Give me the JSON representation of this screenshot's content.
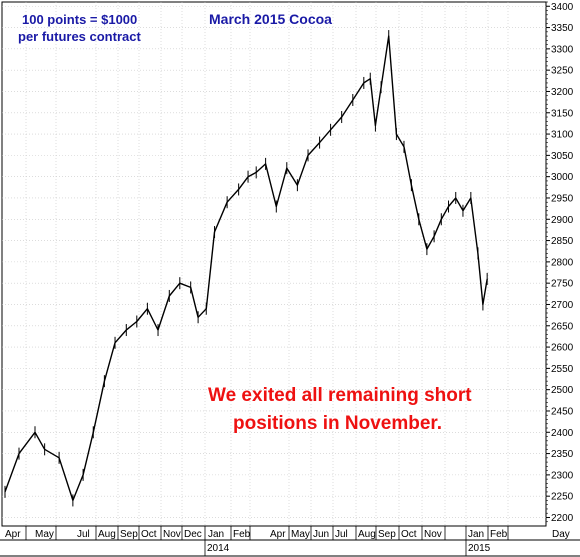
{
  "chart_data": {
    "type": "line",
    "title": "March 2015 Cocoa",
    "contract_note": [
      "100 points = $1000",
      "per futures contract"
    ],
    "annotation": [
      "We exited all remaining short",
      "positions in November."
    ],
    "colors": {
      "title": "#1a1aa6",
      "annotation": "#ee1111",
      "price": "#000000",
      "grid": "#c8c8c8"
    },
    "ylim": [
      2180,
      3410
    ],
    "y_ticks": [
      2200,
      2250,
      2300,
      2350,
      2400,
      2450,
      2500,
      2550,
      2600,
      2650,
      2700,
      2750,
      2800,
      2850,
      2900,
      2950,
      3000,
      3050,
      3100,
      3150,
      3200,
      3250,
      3300,
      3350,
      3400
    ],
    "y_tick_labels": [
      "2200",
      "2250",
      "2300",
      "2350",
      "2400",
      "2450",
      "2500",
      "2550",
      "2600",
      "2650",
      "2700",
      "2750",
      "2800",
      "2850",
      "2900",
      "2950",
      "3000",
      "3050",
      "3100",
      "3150",
      "3200",
      "3250",
      "3300",
      "3350",
      "3400"
    ],
    "x_axis_caption": "Day",
    "x_month_labels": [
      "Apr",
      "May",
      "Jul",
      "Aug",
      "Sep",
      "Oct",
      "Nov",
      "Dec",
      "Jan",
      "Feb",
      "Apr",
      "May",
      "Jun",
      "Jul",
      "Aug",
      "Sep",
      "Oct",
      "Nov",
      "Jan",
      "Feb"
    ],
    "x_year_labels": [
      "2014",
      "2015"
    ],
    "grid": true,
    "series": [
      {
        "x": [
          "2013-04-01",
          "2013-04-15",
          "2013-05-01",
          "2013-05-15",
          "2013-06-05",
          "2013-06-25",
          "2013-07-10",
          "2013-07-25",
          "2013-08-10",
          "2013-08-25",
          "2013-09-10",
          "2013-09-25",
          "2013-10-10",
          "2013-10-25",
          "2013-11-10",
          "2013-11-25",
          "2013-12-10",
          "2013-12-20",
          "2013-12-31",
          "2014-01-10",
          "2014-01-25",
          "2014-02-10",
          "2014-02-25",
          "2014-03-10",
          "2014-03-25",
          "2014-04-10",
          "2014-04-25",
          "2014-05-10",
          "2014-05-25",
          "2014-06-10",
          "2014-06-25",
          "2014-07-10",
          "2014-07-25",
          "2014-08-10",
          "2014-08-20",
          "2014-08-28",
          "2014-09-05",
          "2014-09-15",
          "2014-09-25",
          "2014-10-05",
          "2014-10-15",
          "2014-10-25",
          "2014-11-05",
          "2014-11-15",
          "2014-11-25",
          "2014-12-05",
          "2014-12-15",
          "2014-12-25",
          "2015-01-05",
          "2015-01-15",
          "2015-01-22",
          "2015-01-28"
        ],
        "values": [
          2260,
          2350,
          2400,
          2360,
          2340,
          2240,
          2300,
          2400,
          2520,
          2610,
          2640,
          2660,
          2690,
          2640,
          2720,
          2750,
          2740,
          2670,
          2690,
          2870,
          2940,
          2970,
          3000,
          3010,
          3030,
          2930,
          3020,
          2980,
          3050,
          3080,
          3110,
          3140,
          3180,
          3220,
          3230,
          3120,
          3210,
          3330,
          3100,
          3070,
          2980,
          2900,
          2830,
          2860,
          2900,
          2930,
          2950,
          2920,
          2950,
          2820,
          2700,
          2760
        ]
      }
    ]
  }
}
